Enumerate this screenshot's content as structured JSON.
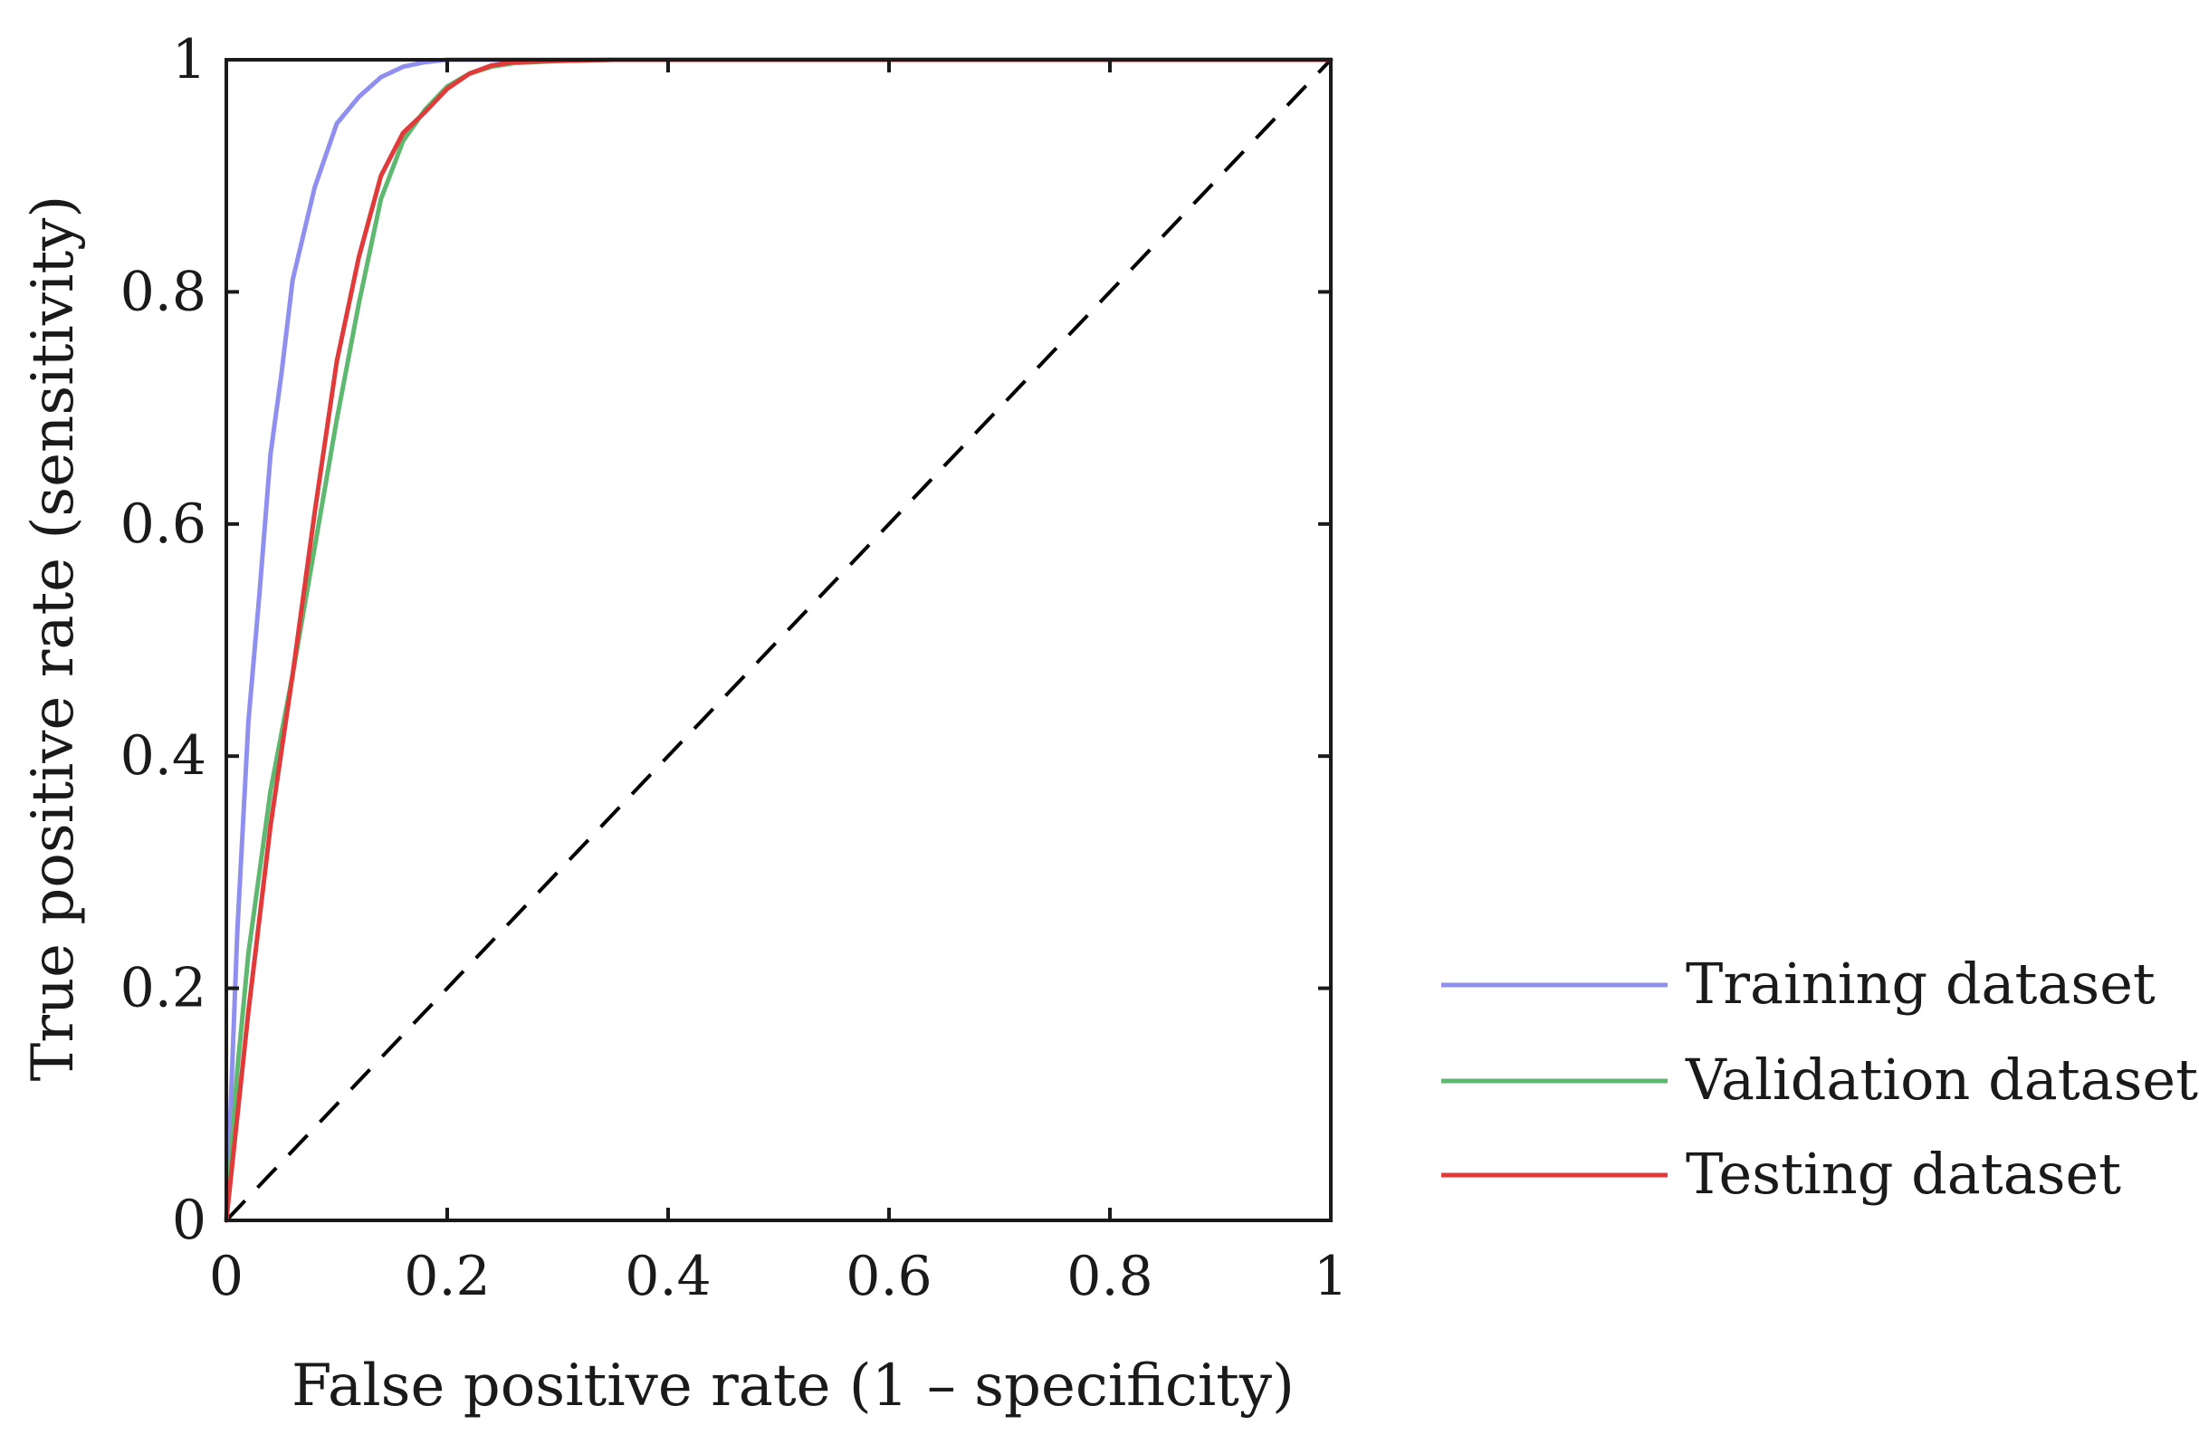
{
  "chart_data": {
    "type": "line",
    "title": "",
    "xlabel": "False positive rate (1 – specificity)",
    "ylabel": "True positive rate (sensitivity)",
    "xlim": [
      0,
      1
    ],
    "ylim": [
      0,
      1
    ],
    "xticks": [
      0,
      0.2,
      0.4,
      0.6,
      0.8,
      1
    ],
    "yticks": [
      0,
      0.2,
      0.4,
      0.6,
      0.8,
      1
    ],
    "xtick_labels": [
      "0",
      "0.2",
      "0.4",
      "0.6",
      "0.8",
      "1"
    ],
    "ytick_labels": [
      "0",
      "0.2",
      "0.4",
      "0.6",
      "0.8",
      "1"
    ],
    "grid": false,
    "legend_position": "right",
    "series": [
      {
        "name": "Training dataset",
        "color": "#8f8ff0",
        "x": [
          0,
          0.01,
          0.02,
          0.03,
          0.04,
          0.05,
          0.06,
          0.08,
          0.1,
          0.12,
          0.14,
          0.16,
          0.18,
          0.2,
          0.22,
          0.25,
          0.3,
          0.4,
          1.0
        ],
        "y": [
          0,
          0.25,
          0.43,
          0.54,
          0.66,
          0.73,
          0.81,
          0.89,
          0.945,
          0.968,
          0.985,
          0.994,
          0.998,
          1.0,
          1.0,
          1.0,
          1.0,
          1.0,
          1.0
        ]
      },
      {
        "name": "Validation dataset",
        "color": "#5fb86f",
        "x": [
          0,
          0.01,
          0.02,
          0.03,
          0.04,
          0.06,
          0.08,
          0.1,
          0.12,
          0.14,
          0.16,
          0.18,
          0.2,
          0.22,
          0.24,
          0.26,
          0.3,
          0.35,
          0.4,
          1.0
        ],
        "y": [
          0,
          0.13,
          0.23,
          0.3,
          0.37,
          0.47,
          0.58,
          0.69,
          0.79,
          0.88,
          0.93,
          0.957,
          0.977,
          0.988,
          0.994,
          0.997,
          0.999,
          1.0,
          1.0,
          1.0
        ]
      },
      {
        "name": "Testing dataset",
        "color": "#e03a3a",
        "x": [
          0,
          0.01,
          0.02,
          0.03,
          0.04,
          0.06,
          0.08,
          0.1,
          0.12,
          0.14,
          0.16,
          0.18,
          0.2,
          0.22,
          0.24,
          0.26,
          0.3,
          0.35,
          0.4,
          1.0
        ],
        "y": [
          0,
          0.09,
          0.18,
          0.26,
          0.34,
          0.47,
          0.61,
          0.74,
          0.83,
          0.9,
          0.937,
          0.955,
          0.975,
          0.988,
          0.995,
          0.998,
          0.999,
          1.0,
          1.0,
          1.0
        ]
      }
    ],
    "reference_line": {
      "name": "chance",
      "style": "dashed",
      "color": "#000000",
      "x": [
        0,
        1
      ],
      "y": [
        0,
        1
      ]
    }
  }
}
